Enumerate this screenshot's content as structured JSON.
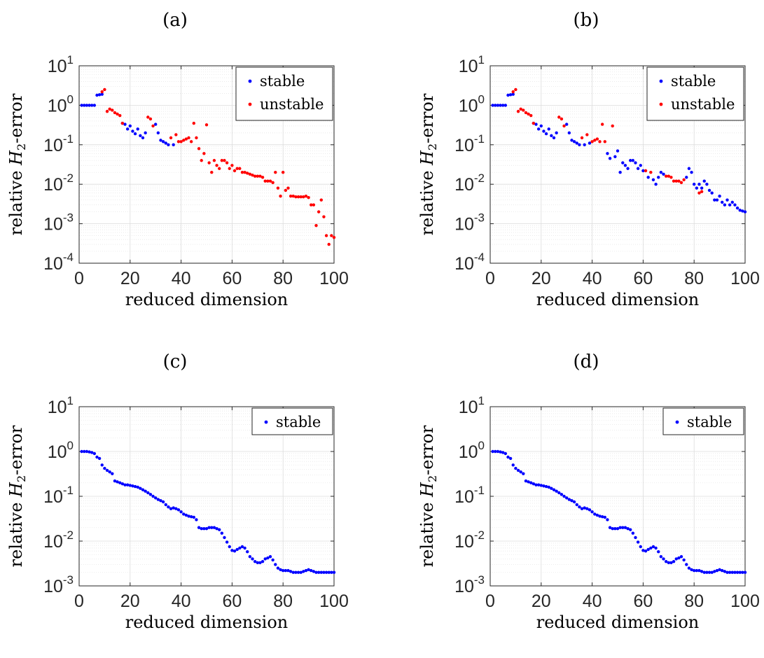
{
  "panels": [
    {
      "panel_label": "(a)"
    },
    {
      "panel_label": "(b)"
    },
    {
      "panel_label": "(c)"
    },
    {
      "panel_label": "(d)"
    }
  ],
  "chart_data": [
    {
      "type": "scatter",
      "title": "(a)",
      "xlabel": "reduced dimension",
      "ylabel_prefix": "relative ",
      "ylabel_symbol": "H",
      "ylabel_subscript": "2",
      "ylabel_suffix": "-error",
      "xlim": [
        0,
        100
      ],
      "ylim": [
        0.0001,
        10
      ],
      "yscale": "log",
      "xticks": [
        0,
        20,
        40,
        60,
        80,
        100
      ],
      "yticks": [
        {
          "base": "10",
          "exp": "1"
        },
        {
          "base": "10",
          "exp": "0"
        },
        {
          "base": "10",
          "exp": "-1"
        },
        {
          "base": "10",
          "exp": "-2"
        },
        {
          "base": "10",
          "exp": "-3"
        },
        {
          "base": "10",
          "exp": "-4"
        }
      ],
      "grid": true,
      "legend_position": "top-right",
      "colors": {
        "stable": "#0000ff",
        "unstable": "#ff0000"
      },
      "series": [
        {
          "name": "stable",
          "x": [
            1,
            2,
            3,
            4,
            5,
            6,
            7,
            8,
            9,
            17,
            18,
            19,
            20,
            21,
            22,
            23,
            24,
            25,
            26,
            30,
            31,
            32,
            33,
            34,
            35,
            37
          ],
          "y": [
            1,
            1,
            1,
            1,
            1,
            1,
            1.8,
            1.85,
            1.9,
            0.35,
            0.33,
            0.25,
            0.3,
            0.22,
            0.19,
            0.25,
            0.17,
            0.15,
            0.2,
            0.33,
            0.2,
            0.13,
            0.12,
            0.11,
            0.1,
            0.1
          ]
        },
        {
          "name": "unstable",
          "x": [
            9,
            10,
            11,
            12,
            13,
            14,
            15,
            16,
            17,
            27,
            28,
            29,
            36,
            38,
            39,
            40,
            41,
            42,
            43,
            44,
            45,
            46,
            47,
            48,
            49,
            50,
            51,
            52,
            53,
            54,
            55,
            56,
            57,
            58,
            59,
            60,
            61,
            62,
            63,
            64,
            65,
            66,
            67,
            68,
            69,
            70,
            71,
            72,
            73,
            74,
            75,
            76,
            77,
            78,
            79,
            80,
            81,
            82,
            83,
            84,
            85,
            86,
            87,
            88,
            89,
            90,
            91,
            92,
            93,
            94,
            95,
            96,
            97,
            98,
            99,
            100
          ],
          "y": [
            2.2,
            2.5,
            0.7,
            0.8,
            0.75,
            0.65,
            0.6,
            0.55,
            0.35,
            0.5,
            0.45,
            0.3,
            0.15,
            0.18,
            0.12,
            0.12,
            0.13,
            0.14,
            0.15,
            0.12,
            0.35,
            0.15,
            0.08,
            0.04,
            0.06,
            0.32,
            0.035,
            0.02,
            0.04,
            0.03,
            0.025,
            0.04,
            0.04,
            0.035,
            0.025,
            0.03,
            0.022,
            0.025,
            0.025,
            0.02,
            0.02,
            0.019,
            0.018,
            0.017,
            0.016,
            0.016,
            0.016,
            0.015,
            0.012,
            0.012,
            0.012,
            0.011,
            0.02,
            0.008,
            0.005,
            0.02,
            0.007,
            0.008,
            0.005,
            0.005,
            0.0048,
            0.0048,
            0.0048,
            0.0048,
            0.005,
            0.0046,
            0.003,
            0.003,
            0.0009,
            0.002,
            0.004,
            0.0015,
            0.0005,
            0.0003,
            0.0005,
            0.00045
          ]
        }
      ]
    },
    {
      "type": "scatter",
      "title": "(b)",
      "xlabel": "reduced dimension",
      "ylabel_prefix": "relative ",
      "ylabel_symbol": "H",
      "ylabel_subscript": "2",
      "ylabel_suffix": "-error",
      "xlim": [
        0,
        100
      ],
      "ylim": [
        0.0001,
        10
      ],
      "yscale": "log",
      "xticks": [
        0,
        20,
        40,
        60,
        80,
        100
      ],
      "yticks": [
        {
          "base": "10",
          "exp": "1"
        },
        {
          "base": "10",
          "exp": "0"
        },
        {
          "base": "10",
          "exp": "-1"
        },
        {
          "base": "10",
          "exp": "-2"
        },
        {
          "base": "10",
          "exp": "-3"
        },
        {
          "base": "10",
          "exp": "-4"
        }
      ],
      "grid": true,
      "legend_position": "top-right",
      "colors": {
        "stable": "#0000ff",
        "unstable": "#ff0000"
      },
      "series": [
        {
          "name": "stable",
          "x": [
            1,
            2,
            3,
            4,
            5,
            6,
            7,
            8,
            9,
            17,
            18,
            19,
            20,
            21,
            22,
            23,
            24,
            25,
            26,
            30,
            31,
            32,
            33,
            34,
            35,
            37,
            39,
            46,
            47,
            49,
            50,
            51,
            52,
            53,
            54,
            55,
            56,
            57,
            58,
            59,
            60,
            62,
            64,
            65,
            66,
            67,
            68,
            77,
            78,
            79,
            80,
            81,
            82,
            83,
            84,
            85,
            86,
            87,
            88,
            89,
            90,
            91,
            92,
            93,
            94,
            95,
            96,
            97,
            98,
            99,
            100
          ],
          "y": [
            1,
            1,
            1,
            1,
            1,
            1,
            1.8,
            1.85,
            1.9,
            0.35,
            0.33,
            0.25,
            0.3,
            0.22,
            0.19,
            0.25,
            0.17,
            0.15,
            0.2,
            0.33,
            0.2,
            0.13,
            0.12,
            0.11,
            0.1,
            0.1,
            0.11,
            0.06,
            0.045,
            0.05,
            0.07,
            0.02,
            0.035,
            0.03,
            0.025,
            0.04,
            0.04,
            0.035,
            0.025,
            0.03,
            0.022,
            0.015,
            0.013,
            0.01,
            0.015,
            0.02,
            0.018,
            0.015,
            0.025,
            0.02,
            0.01,
            0.008,
            0.01,
            0.008,
            0.012,
            0.01,
            0.007,
            0.006,
            0.004,
            0.004,
            0.005,
            0.0035,
            0.003,
            0.004,
            0.003,
            0.0035,
            0.003,
            0.0025,
            0.0022,
            0.0021,
            0.002
          ]
        },
        {
          "name": "unstable",
          "x": [
            9,
            10,
            11,
            12,
            13,
            14,
            15,
            16,
            17,
            27,
            28,
            29,
            36,
            38,
            40,
            41,
            42,
            43,
            44,
            45,
            48,
            61,
            63,
            69,
            70,
            71,
            72,
            73,
            74,
            75,
            76,
            82,
            83
          ],
          "y": [
            2.2,
            2.5,
            0.7,
            0.8,
            0.75,
            0.65,
            0.6,
            0.55,
            0.35,
            0.5,
            0.45,
            0.3,
            0.15,
            0.18,
            0.12,
            0.13,
            0.14,
            0.12,
            0.33,
            0.12,
            0.3,
            0.022,
            0.02,
            0.016,
            0.016,
            0.015,
            0.012,
            0.012,
            0.012,
            0.011,
            0.013,
            0.006,
            0.0065
          ]
        }
      ]
    },
    {
      "type": "scatter",
      "title": "(c)",
      "xlabel": "reduced dimension",
      "ylabel_prefix": "relative ",
      "ylabel_symbol": "H",
      "ylabel_subscript": "2",
      "ylabel_suffix": "-error",
      "xlim": [
        0,
        100
      ],
      "ylim": [
        0.001,
        10
      ],
      "yscale": "log",
      "xticks": [
        0,
        20,
        40,
        60,
        80,
        100
      ],
      "yticks": [
        {
          "base": "10",
          "exp": "1"
        },
        {
          "base": "10",
          "exp": "0"
        },
        {
          "base": "10",
          "exp": "-1"
        },
        {
          "base": "10",
          "exp": "-2"
        },
        {
          "base": "10",
          "exp": "-3"
        }
      ],
      "grid": true,
      "legend_position": "top-right",
      "colors": {
        "stable": "#0000ff"
      },
      "series": [
        {
          "name": "stable",
          "x": [
            1,
            2,
            3,
            4,
            5,
            6,
            7,
            8,
            9,
            10,
            11,
            12,
            13,
            14,
            15,
            16,
            17,
            18,
            19,
            20,
            21,
            22,
            23,
            24,
            25,
            26,
            27,
            28,
            29,
            30,
            31,
            32,
            33,
            34,
            35,
            36,
            37,
            38,
            39,
            40,
            41,
            42,
            43,
            44,
            45,
            46,
            47,
            48,
            49,
            50,
            51,
            52,
            53,
            54,
            55,
            56,
            57,
            58,
            59,
            60,
            61,
            62,
            63,
            64,
            65,
            66,
            67,
            68,
            69,
            70,
            71,
            72,
            73,
            74,
            75,
            76,
            77,
            78,
            79,
            80,
            81,
            82,
            83,
            84,
            85,
            86,
            87,
            88,
            89,
            90,
            91,
            92,
            93,
            94,
            95,
            96,
            97,
            98,
            99,
            100
          ],
          "y": [
            1.0,
            1.0,
            1.0,
            0.98,
            0.95,
            0.9,
            0.75,
            0.7,
            0.5,
            0.42,
            0.38,
            0.35,
            0.32,
            0.22,
            0.21,
            0.2,
            0.19,
            0.18,
            0.18,
            0.175,
            0.17,
            0.165,
            0.16,
            0.15,
            0.14,
            0.13,
            0.12,
            0.11,
            0.1,
            0.092,
            0.085,
            0.08,
            0.075,
            0.065,
            0.058,
            0.053,
            0.055,
            0.053,
            0.05,
            0.045,
            0.04,
            0.038,
            0.036,
            0.035,
            0.034,
            0.03,
            0.02,
            0.019,
            0.019,
            0.019,
            0.02,
            0.02,
            0.02,
            0.019,
            0.018,
            0.015,
            0.012,
            0.0095,
            0.0075,
            0.0062,
            0.006,
            0.0065,
            0.007,
            0.0075,
            0.007,
            0.0058,
            0.0045,
            0.004,
            0.0035,
            0.0033,
            0.0033,
            0.0035,
            0.004,
            0.0042,
            0.0045,
            0.0038,
            0.003,
            0.0025,
            0.0023,
            0.0022,
            0.0022,
            0.0022,
            0.0021,
            0.002,
            0.002,
            0.002,
            0.002,
            0.0021,
            0.0022,
            0.0023,
            0.0022,
            0.0021,
            0.002,
            0.002,
            0.002,
            0.002,
            0.002,
            0.002,
            0.002,
            0.002
          ]
        }
      ]
    },
    {
      "type": "scatter",
      "title": "(d)",
      "xlabel": "reduced dimension",
      "ylabel_prefix": "relative ",
      "ylabel_symbol": "H",
      "ylabel_subscript": "2",
      "ylabel_suffix": "-error",
      "xlim": [
        0,
        100
      ],
      "ylim": [
        0.001,
        10
      ],
      "yscale": "log",
      "xticks": [
        0,
        20,
        40,
        60,
        80,
        100
      ],
      "yticks": [
        {
          "base": "10",
          "exp": "1"
        },
        {
          "base": "10",
          "exp": "0"
        },
        {
          "base": "10",
          "exp": "-1"
        },
        {
          "base": "10",
          "exp": "-2"
        },
        {
          "base": "10",
          "exp": "-3"
        }
      ],
      "grid": true,
      "legend_position": "top-right",
      "colors": {
        "stable": "#0000ff"
      },
      "series": [
        {
          "name": "stable",
          "x": [
            1,
            2,
            3,
            4,
            5,
            6,
            7,
            8,
            9,
            10,
            11,
            12,
            13,
            14,
            15,
            16,
            17,
            18,
            19,
            20,
            21,
            22,
            23,
            24,
            25,
            26,
            27,
            28,
            29,
            30,
            31,
            32,
            33,
            34,
            35,
            36,
            37,
            38,
            39,
            40,
            41,
            42,
            43,
            44,
            45,
            46,
            47,
            48,
            49,
            50,
            51,
            52,
            53,
            54,
            55,
            56,
            57,
            58,
            59,
            60,
            61,
            62,
            63,
            64,
            65,
            66,
            67,
            68,
            69,
            70,
            71,
            72,
            73,
            74,
            75,
            76,
            77,
            78,
            79,
            80,
            81,
            82,
            83,
            84,
            85,
            86,
            87,
            88,
            89,
            90,
            91,
            92,
            93,
            94,
            95,
            96,
            97,
            98,
            99,
            100
          ],
          "y": [
            1.0,
            1.0,
            1.0,
            0.98,
            0.95,
            0.9,
            0.75,
            0.7,
            0.5,
            0.42,
            0.38,
            0.35,
            0.32,
            0.22,
            0.21,
            0.2,
            0.19,
            0.18,
            0.18,
            0.175,
            0.17,
            0.165,
            0.16,
            0.15,
            0.14,
            0.13,
            0.12,
            0.11,
            0.1,
            0.092,
            0.085,
            0.08,
            0.075,
            0.065,
            0.058,
            0.053,
            0.055,
            0.053,
            0.05,
            0.045,
            0.04,
            0.038,
            0.036,
            0.035,
            0.034,
            0.03,
            0.02,
            0.019,
            0.019,
            0.019,
            0.02,
            0.02,
            0.02,
            0.019,
            0.018,
            0.015,
            0.012,
            0.0095,
            0.0075,
            0.0062,
            0.006,
            0.0065,
            0.007,
            0.0075,
            0.007,
            0.0058,
            0.0045,
            0.004,
            0.0035,
            0.0033,
            0.0033,
            0.0035,
            0.004,
            0.0042,
            0.0045,
            0.0038,
            0.003,
            0.0025,
            0.0023,
            0.0022,
            0.0022,
            0.0022,
            0.0021,
            0.002,
            0.002,
            0.002,
            0.002,
            0.0021,
            0.0022,
            0.0023,
            0.0022,
            0.0021,
            0.002,
            0.002,
            0.002,
            0.002,
            0.002,
            0.002,
            0.002,
            0.002
          ]
        }
      ]
    }
  ]
}
